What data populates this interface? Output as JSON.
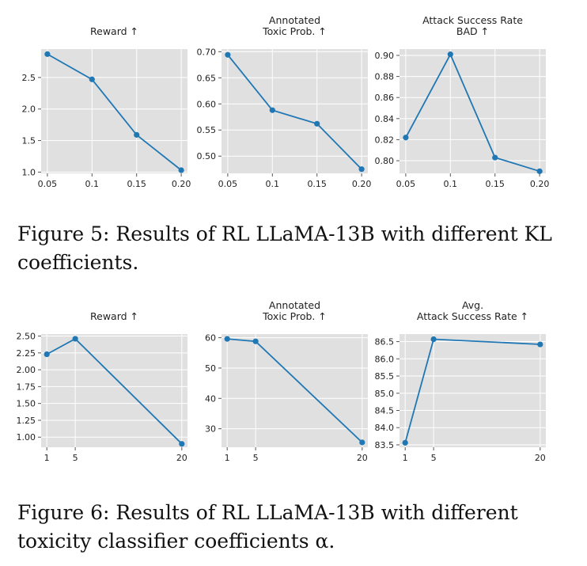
{
  "figures": [
    {
      "caption": "Figure 5: Results of RL LLaMA-13B with different KL coefficients.",
      "caption_lines": [
        "Figure 5: Results of RL LLaMA-13B with different KL",
        "coefficients."
      ]
    },
    {
      "caption": "Figure 6: Results of RL LLaMA-13B with different toxicity classifier coefficients α.",
      "caption_lines": [
        "Figure 6:  Results of RL LLaMA-13B with different",
        "toxicity classifier coefficients α."
      ]
    }
  ],
  "colors": {
    "panel_bg": "#e0e0e0",
    "grid": "#ffffff",
    "line": "#1f77b4",
    "text": "#222222"
  },
  "chart_data": [
    {
      "type": "line",
      "figure": 0,
      "title": [
        "Reward ↑"
      ],
      "x": [
        0.05,
        0.1,
        0.15,
        0.2
      ],
      "values": [
        2.87,
        2.47,
        1.59,
        1.03
      ],
      "xticks": [
        0.05,
        0.1,
        0.15,
        0.2
      ],
      "xtick_labels": [
        "0.05",
        "0.1",
        "0.15",
        "0.20"
      ],
      "yticks": [
        1.0,
        1.5,
        2.0,
        2.5
      ],
      "ytick_labels": [
        "1.0",
        "1.5",
        "2.0",
        "2.5"
      ],
      "xlim": [
        0.043,
        0.207
      ],
      "ylim": [
        0.98,
        2.95
      ],
      "xlabel": "",
      "ylabel": "",
      "grid": true
    },
    {
      "type": "line",
      "figure": 0,
      "title": [
        "Annotated",
        "Toxic Prob. ↑"
      ],
      "x": [
        0.05,
        0.1,
        0.15,
        0.2
      ],
      "values": [
        0.694,
        0.588,
        0.562,
        0.475
      ],
      "xticks": [
        0.05,
        0.1,
        0.15,
        0.2
      ],
      "xtick_labels": [
        "0.05",
        "0.1",
        "0.15",
        "0.20"
      ],
      "yticks": [
        0.5,
        0.55,
        0.6,
        0.65,
        0.7
      ],
      "ytick_labels": [
        "0.50",
        "0.55",
        "0.60",
        "0.65",
        "0.70"
      ],
      "xlim": [
        0.043,
        0.207
      ],
      "ylim": [
        0.467,
        0.705
      ],
      "xlabel": "",
      "ylabel": "",
      "grid": true
    },
    {
      "type": "line",
      "figure": 0,
      "title": [
        "Attack Success Rate",
        "BAD ↑"
      ],
      "x": [
        0.05,
        0.1,
        0.15,
        0.2
      ],
      "values": [
        0.822,
        0.901,
        0.803,
        0.79
      ],
      "xticks": [
        0.05,
        0.1,
        0.15,
        0.2
      ],
      "xtick_labels": [
        "0.05",
        "0.1",
        "0.15",
        "0.20"
      ],
      "yticks": [
        0.8,
        0.82,
        0.84,
        0.86,
        0.88,
        0.9
      ],
      "ytick_labels": [
        "0.80",
        "0.82",
        "0.84",
        "0.86",
        "0.88",
        "0.90"
      ],
      "xlim": [
        0.043,
        0.207
      ],
      "ylim": [
        0.788,
        0.906
      ],
      "xlabel": "",
      "ylabel": "",
      "grid": true
    },
    {
      "type": "line",
      "figure": 1,
      "title": [
        "Reward ↑"
      ],
      "x": [
        1,
        5,
        20
      ],
      "values": [
        2.23,
        2.46,
        0.9
      ],
      "xticks": [
        1,
        5,
        20
      ],
      "xtick_labels": [
        "1",
        "5",
        "20"
      ],
      "yticks": [
        1.0,
        1.25,
        1.5,
        1.75,
        2.0,
        2.25,
        2.5
      ],
      "ytick_labels": [
        "1.00",
        "1.25",
        "1.50",
        "1.75",
        "2.00",
        "2.25",
        "2.50"
      ],
      "xlim": [
        0.2,
        20.8
      ],
      "ylim": [
        0.85,
        2.53
      ],
      "xlabel": "",
      "ylabel": "",
      "grid": true
    },
    {
      "type": "line",
      "figure": 1,
      "title": [
        "Annotated",
        "Toxic Prob. ↑"
      ],
      "x": [
        1,
        5,
        20
      ],
      "values": [
        59.6,
        58.8,
        25.5
      ],
      "xticks": [
        1,
        5,
        20
      ],
      "xtick_labels": [
        "1",
        "5",
        "20"
      ],
      "yticks": [
        30,
        40,
        50,
        60
      ],
      "ytick_labels": [
        "30",
        "40",
        "50",
        "60"
      ],
      "xlim": [
        0.2,
        20.8
      ],
      "ylim": [
        23.9,
        61.2
      ],
      "xlabel": "",
      "ylabel": "",
      "grid": true
    },
    {
      "type": "line",
      "figure": 1,
      "title": [
        "Avg.",
        "Attack Success Rate ↑"
      ],
      "x": [
        1,
        5,
        20
      ],
      "values": [
        83.56,
        86.57,
        86.42
      ],
      "xticks": [
        1,
        5,
        20
      ],
      "xtick_labels": [
        "1",
        "5",
        "20"
      ],
      "yticks": [
        83.5,
        84.0,
        84.5,
        85.0,
        85.5,
        86.0,
        86.5
      ],
      "ytick_labels": [
        "83.5",
        "84.0",
        "84.5",
        "85.0",
        "85.5",
        "86.0",
        "86.5"
      ],
      "xlim": [
        0.2,
        20.8
      ],
      "ylim": [
        83.43,
        86.72
      ],
      "xlabel": "",
      "ylabel": "",
      "grid": true
    }
  ]
}
